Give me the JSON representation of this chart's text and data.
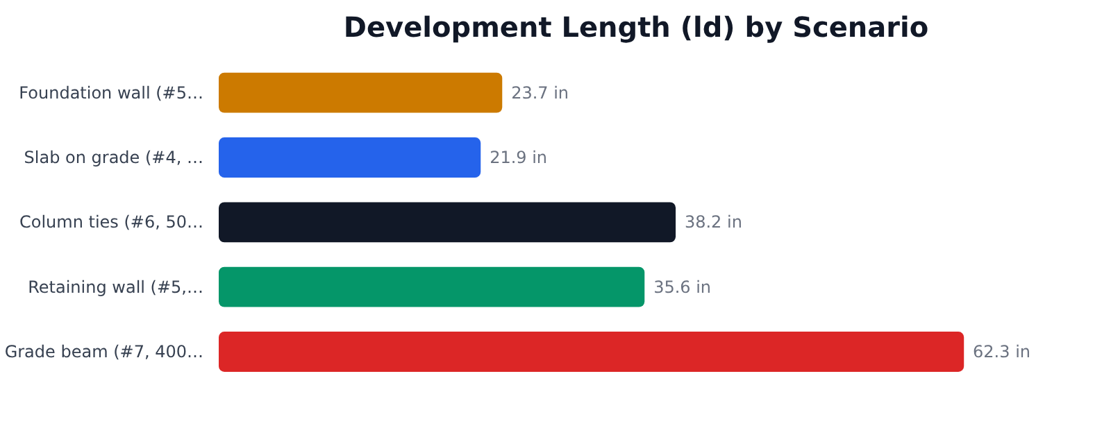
{
  "chart_data": {
    "type": "bar",
    "orientation": "horizontal",
    "title": "Development Length (ld) by Scenario",
    "categories": [
      "Foundation wall (#5…",
      "Slab on grade (#4, …",
      "Column ties (#6, 50…",
      "Retaining wall (#5,…",
      "Grade beam (#7, 400…"
    ],
    "values": [
      23.7,
      21.9,
      38.2,
      35.6,
      62.3
    ],
    "colors": [
      "#cc7a00",
      "#2563eb",
      "#111827",
      "#059669",
      "#dc2626"
    ],
    "value_labels": [
      "23.7 in",
      "21.9 in",
      "38.2 in",
      "35.6 in",
      "62.3 in"
    ],
    "grid": false
  }
}
